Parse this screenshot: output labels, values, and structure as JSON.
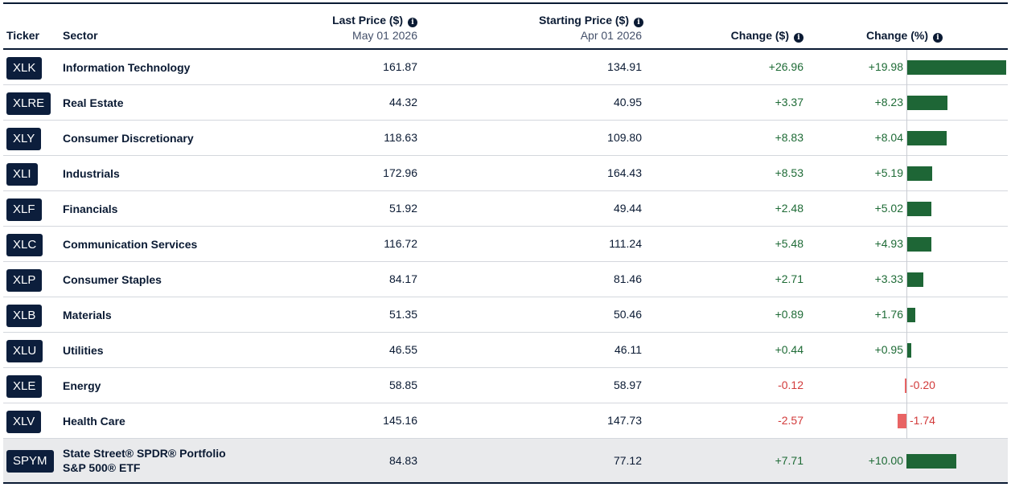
{
  "header": {
    "ticker": "Ticker",
    "sector": "Sector",
    "last_price": "Last Price ($)",
    "last_price_date": "May 01 2026",
    "starting_price": "Starting Price ($)",
    "starting_price_date": "Apr 01 2026",
    "change_dollar": "Change ($)",
    "change_pct": "Change (%)",
    "info_icon": "i"
  },
  "colors": {
    "positive": "#1e6636",
    "negative": "#e86464",
    "ticker_bg": "#0c1e3c"
  },
  "rows": [
    {
      "ticker": "XLK",
      "sector": "Information Technology",
      "last": "161.87",
      "start": "134.91",
      "chg": "+26.96",
      "pct": "+19.98",
      "pct_value": 19.98
    },
    {
      "ticker": "XLRE",
      "sector": "Real Estate",
      "last": "44.32",
      "start": "40.95",
      "chg": "+3.37",
      "pct": "+8.23",
      "pct_value": 8.23
    },
    {
      "ticker": "XLY",
      "sector": "Consumer Discretionary",
      "last": "118.63",
      "start": "109.80",
      "chg": "+8.83",
      "pct": "+8.04",
      "pct_value": 8.04
    },
    {
      "ticker": "XLI",
      "sector": "Industrials",
      "last": "172.96",
      "start": "164.43",
      "chg": "+8.53",
      "pct": "+5.19",
      "pct_value": 5.19
    },
    {
      "ticker": "XLF",
      "sector": "Financials",
      "last": "51.92",
      "start": "49.44",
      "chg": "+2.48",
      "pct": "+5.02",
      "pct_value": 5.02
    },
    {
      "ticker": "XLC",
      "sector": "Communication Services",
      "last": "116.72",
      "start": "111.24",
      "chg": "+5.48",
      "pct": "+4.93",
      "pct_value": 4.93
    },
    {
      "ticker": "XLP",
      "sector": "Consumer Staples",
      "last": "84.17",
      "start": "81.46",
      "chg": "+2.71",
      "pct": "+3.33",
      "pct_value": 3.33
    },
    {
      "ticker": "XLB",
      "sector": "Materials",
      "last": "51.35",
      "start": "50.46",
      "chg": "+0.89",
      "pct": "+1.76",
      "pct_value": 1.76
    },
    {
      "ticker": "XLU",
      "sector": "Utilities",
      "last": "46.55",
      "start": "46.11",
      "chg": "+0.44",
      "pct": "+0.95",
      "pct_value": 0.95
    },
    {
      "ticker": "XLE",
      "sector": "Energy",
      "last": "58.85",
      "start": "58.97",
      "chg": "-0.12",
      "pct": "-0.20",
      "pct_value": -0.2
    },
    {
      "ticker": "XLV",
      "sector": "Health Care",
      "last": "145.16",
      "start": "147.73",
      "chg": "-2.57",
      "pct": "-1.74",
      "pct_value": -1.74
    }
  ],
  "benchmark": {
    "ticker": "SPYM",
    "sector_line1": "State Street® SPDR® Portfolio",
    "sector_line2": "S&P 500® ETF",
    "last": "84.83",
    "start": "77.12",
    "chg": "+7.71",
    "pct": "+10.00",
    "pct_value": 10.0
  }
}
